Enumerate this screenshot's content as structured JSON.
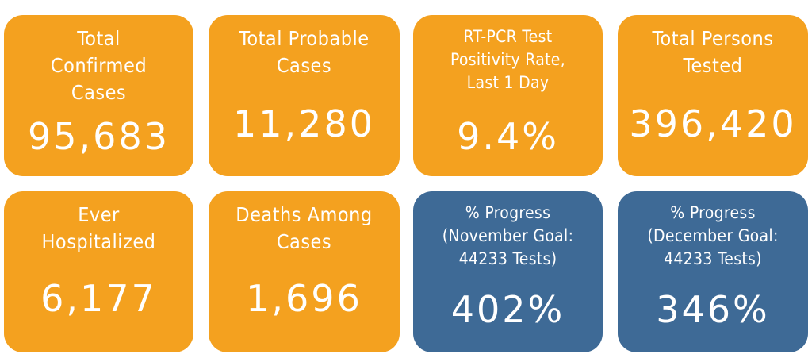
{
  "tiles": [
    {
      "title": "Total\nConfirmed\nCases",
      "value": "95,683",
      "color": "#f4a11f"
    },
    {
      "title": "Total Probable\nCases",
      "value": "11,280",
      "color": "#f4a11f"
    },
    {
      "title": "RT-PCR Test\nPositivity Rate,\nLast 1 Day",
      "value": "9.4%",
      "color": "#f4a11f"
    },
    {
      "title": "Total Persons\nTested",
      "value": "396,420",
      "color": "#f4a11f"
    },
    {
      "title": "Ever\nHospitalized",
      "value": "6,177",
      "color": "#f4a11f"
    },
    {
      "title": "Deaths Among\nCases",
      "value": "1,696",
      "color": "#f4a11f"
    },
    {
      "title": "% Progress\n(November Goal:\n44233 Tests)",
      "value": "402%",
      "color": "#3e6a96"
    },
    {
      "title": "% Progress\n(December Goal:\n44233 Tests)",
      "value": "346%",
      "color": "#3e6a96"
    }
  ]
}
